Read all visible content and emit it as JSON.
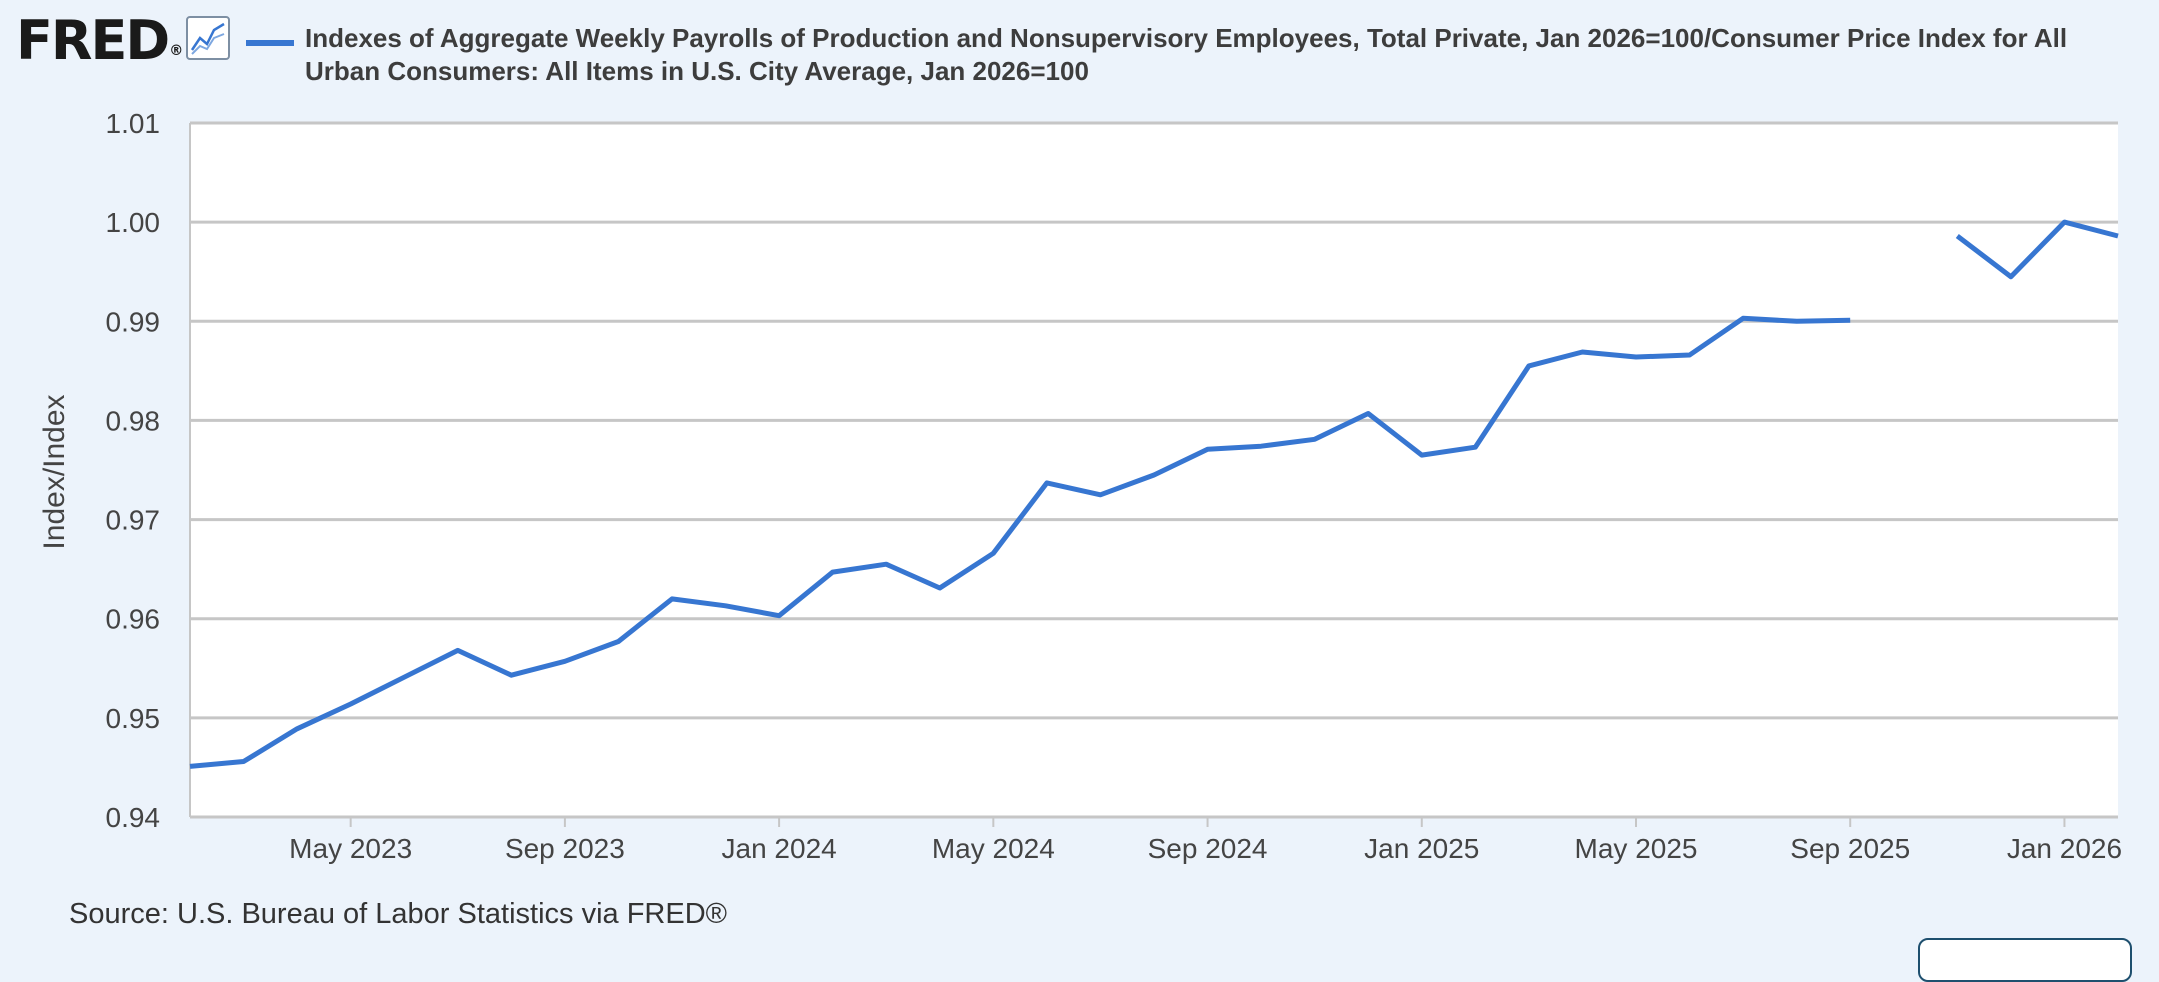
{
  "header": {
    "logo_text": "FRED",
    "logo_mark": "®",
    "graph_icon": "line-graph-icon",
    "legend_label": "Indexes of Aggregate Weekly Payrolls of Production and Nonsupervisory Employees, Total Private, Jan 2026=100/Consumer Price Index for All Urban Consumers: All Items in U.S. City Average, Jan 2026=100"
  },
  "footer": {
    "source": "Source: U.S. Bureau of Labor Statistics via FRED®"
  },
  "colors": {
    "page_background": "#ecf3fb",
    "plot_background": "#ffffff",
    "series": "#3776d1",
    "grid": "#c6c6c6",
    "axis_text": "#444444"
  },
  "chart_data": {
    "type": "line",
    "title": "",
    "xlabel": "",
    "ylabel": "Index/Index",
    "ylim": [
      0.94,
      1.01
    ],
    "y_ticks": [
      {
        "value": 0.94,
        "label": "0.94"
      },
      {
        "value": 0.95,
        "label": "0.95"
      },
      {
        "value": 0.96,
        "label": "0.96"
      },
      {
        "value": 0.97,
        "label": "0.97"
      },
      {
        "value": 0.98,
        "label": "0.98"
      },
      {
        "value": 0.99,
        "label": "0.99"
      },
      {
        "value": 1.0,
        "label": "1.00"
      },
      {
        "value": 1.01,
        "label": "1.01"
      }
    ],
    "xlim": [
      "2023-02",
      "2026-02"
    ],
    "x_ticks": [
      {
        "date": "2023-05",
        "label": "May 2023"
      },
      {
        "date": "2023-09",
        "label": "Sep 2023"
      },
      {
        "date": "2024-01",
        "label": "Jan 2024"
      },
      {
        "date": "2024-05",
        "label": "May 2024"
      },
      {
        "date": "2024-09",
        "label": "Sep 2024"
      },
      {
        "date": "2025-01",
        "label": "Jan 2025"
      },
      {
        "date": "2025-05",
        "label": "May 2025"
      },
      {
        "date": "2025-09",
        "label": "Sep 2025"
      },
      {
        "date": "2026-01",
        "label": "Jan 2026"
      }
    ],
    "grid": true,
    "legend_position": "top",
    "series": [
      {
        "name": "Indexes of Aggregate Weekly Payrolls of Production and Nonsupervisory Employees, Total Private, Jan 2026=100/Consumer Price Index for All Urban Consumers: All Items in U.S. City Average, Jan 2026=100",
        "points": [
          {
            "date": "2023-02",
            "value": 0.9451
          },
          {
            "date": "2023-03",
            "value": 0.9456
          },
          {
            "date": "2023-04",
            "value": 0.9489
          },
          {
            "date": "2023-05",
            "value": 0.9514
          },
          {
            "date": "2023-06",
            "value": 0.9541
          },
          {
            "date": "2023-07",
            "value": 0.9568
          },
          {
            "date": "2023-08",
            "value": 0.9543
          },
          {
            "date": "2023-09",
            "value": 0.9557
          },
          {
            "date": "2023-10",
            "value": 0.9577
          },
          {
            "date": "2023-11",
            "value": 0.962
          },
          {
            "date": "2023-12",
            "value": 0.9613
          },
          {
            "date": "2024-01",
            "value": 0.9603
          },
          {
            "date": "2024-02",
            "value": 0.9647
          },
          {
            "date": "2024-03",
            "value": 0.9655
          },
          {
            "date": "2024-04",
            "value": 0.9631
          },
          {
            "date": "2024-05",
            "value": 0.9666
          },
          {
            "date": "2024-06",
            "value": 0.9737
          },
          {
            "date": "2024-07",
            "value": 0.9725
          },
          {
            "date": "2024-08",
            "value": 0.9745
          },
          {
            "date": "2024-09",
            "value": 0.9771
          },
          {
            "date": "2024-10",
            "value": 0.9774
          },
          {
            "date": "2024-11",
            "value": 0.9781
          },
          {
            "date": "2024-12",
            "value": 0.9807
          },
          {
            "date": "2025-01",
            "value": 0.9765
          },
          {
            "date": "2025-02",
            "value": 0.9773
          },
          {
            "date": "2025-03",
            "value": 0.9855
          },
          {
            "date": "2025-04",
            "value": 0.9869
          },
          {
            "date": "2025-05",
            "value": 0.9864
          },
          {
            "date": "2025-06",
            "value": 0.9866
          },
          {
            "date": "2025-07",
            "value": 0.9903
          },
          {
            "date": "2025-08",
            "value": 0.99
          },
          {
            "date": "2025-09",
            "value": 0.9901
          },
          {
            "date": "2025-10",
            "value": null
          },
          {
            "date": "2025-11",
            "value": 0.9986
          },
          {
            "date": "2025-12",
            "value": 0.9945
          },
          {
            "date": "2026-01",
            "value": 1.0
          },
          {
            "date": "2026-02",
            "value": 0.9986
          }
        ]
      }
    ]
  }
}
